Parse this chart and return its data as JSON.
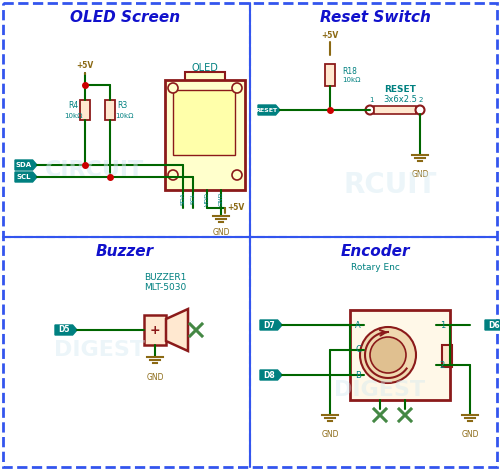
{
  "bg_color": "#ffffff",
  "border_color": "#3355ee",
  "panel_title_color": "#1111cc",
  "component_color": "#8b1a1a",
  "wire_color": "#006600",
  "label_color": "#008080",
  "gnd_color": "#8b6914",
  "connector_fill": "#008080",
  "connector_text": "#ffffff",
  "oled_fill": "#ffffcc",
  "dot_color": "#cc0000",
  "xmark_color": "#448844",
  "watermark_color": "#d0e8f0",
  "panel_titles": [
    "OLED Screen",
    "Reset Switch",
    "Buzzer",
    "Encoder"
  ]
}
